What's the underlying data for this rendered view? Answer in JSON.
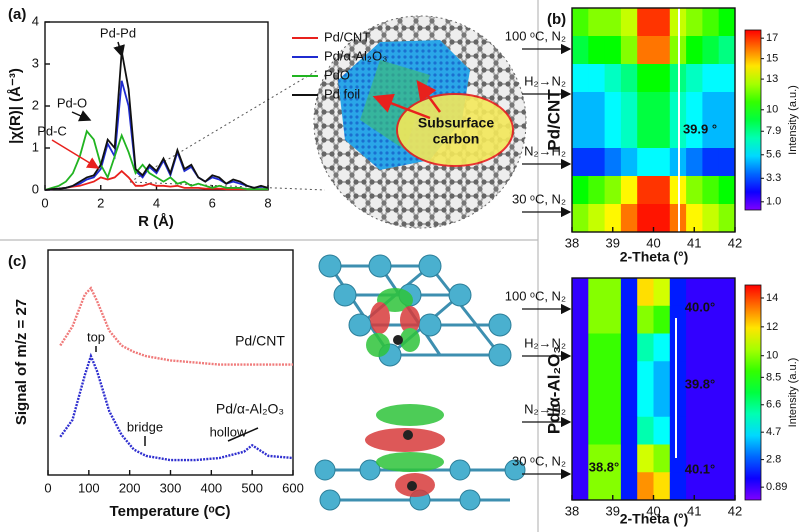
{
  "chart_data": [
    {
      "type": "line",
      "panel": "(a)",
      "x_label": "R (Å)",
      "y_label": "|χ(R)| (Å⁻³)",
      "x": [
        0,
        0.25,
        0.5,
        0.75,
        1,
        1.25,
        1.5,
        1.75,
        2,
        2.25,
        2.5,
        2.75,
        3,
        3.25,
        3.5,
        3.75,
        4,
        4.25,
        4.5,
        4.75,
        5,
        5.25,
        5.5,
        5.75,
        6,
        6.25,
        6.5,
        6.75,
        7,
        7.25,
        7.5,
        7.75,
        8
      ],
      "xlim": [
        0,
        8
      ],
      "xticks": [
        0,
        2,
        4,
        6,
        8
      ],
      "ylim": [
        0,
        4
      ],
      "yticks": [
        0,
        1,
        2,
        3,
        4
      ],
      "legend": "upper right",
      "series": [
        {
          "name": "Pd/CNT",
          "color": "#e8211d",
          "values": [
            0,
            0.02,
            0.03,
            0.05,
            0.08,
            0.1,
            0.15,
            0.2,
            0.3,
            0.25,
            0.3,
            0.45,
            0.3,
            0.1,
            0.1,
            0.15,
            0.1,
            0.1,
            0.08,
            0.1,
            0.05,
            0.05,
            0.05,
            0.03,
            0.03,
            0.03,
            0.02,
            0.02,
            0.02,
            0.02,
            0.02,
            0.02,
            0.02
          ]
        },
        {
          "name": "Pd/α-Al₂O₃",
          "color": "#1f2bd0",
          "values": [
            0,
            0.02,
            0.03,
            0.05,
            0.1,
            0.15,
            0.25,
            0.3,
            0.5,
            1.1,
            0.8,
            2.6,
            2.0,
            0.45,
            0.3,
            0.55,
            0.4,
            0.7,
            0.35,
            0.9,
            0.45,
            0.55,
            0.3,
            0.2,
            0.3,
            0.25,
            0.15,
            0.2,
            0.15,
            0.1,
            0.05,
            0.08,
            0.05
          ]
        },
        {
          "name": "PdO",
          "color": "#21b421",
          "values": [
            0,
            0.05,
            0.1,
            0.2,
            0.4,
            0.8,
            1.4,
            1.2,
            0.6,
            0.3,
            0.8,
            1.3,
            0.9,
            0.4,
            0.6,
            0.4,
            0.3,
            0.2,
            0.3,
            0.15,
            0.2,
            0.1,
            0.15,
            0.1,
            0.05,
            0.1,
            0.05,
            0.05,
            0.05,
            0.02,
            0.02,
            0.02,
            0.02
          ]
        },
        {
          "name": "Pd foil",
          "color": "#111111",
          "values": [
            0,
            0.02,
            0.03,
            0.05,
            0.1,
            0.2,
            0.3,
            0.35,
            0.6,
            1.2,
            1.0,
            3.3,
            2.4,
            0.5,
            0.35,
            0.6,
            0.45,
            0.75,
            0.4,
            0.95,
            0.5,
            0.6,
            0.3,
            0.2,
            0.35,
            0.3,
            0.15,
            0.25,
            0.2,
            0.1,
            0.05,
            0.1,
            0.05
          ]
        }
      ],
      "annotations": [
        "Pd-Pd",
        "Pd-O",
        "Pd-C"
      ],
      "inset_labels": [
        "Subsurface",
        "carbon"
      ]
    },
    {
      "type": "line",
      "panel": "(c)",
      "x_label": "Temperature (ᵒC)",
      "y_label": "Signal of m/z = 27",
      "x": [
        30,
        60,
        90,
        105,
        120,
        150,
        180,
        210,
        240,
        270,
        300,
        360,
        420,
        480,
        500,
        540,
        600
      ],
      "xlim": [
        0,
        600
      ],
      "xticks": [
        0,
        100,
        200,
        300,
        400,
        500,
        600
      ],
      "ylim": [
        -0.02,
        1.04
      ],
      "legend": "inline",
      "series": [
        {
          "name": "Pd/CNT",
          "color": "#f07a7a",
          "values": [
            0.59,
            0.68,
            0.83,
            0.86,
            0.8,
            0.66,
            0.59,
            0.56,
            0.54,
            0.53,
            0.52,
            0.51,
            0.5,
            0.5,
            0.5,
            0.5,
            0.5
          ]
        },
        {
          "name": "Pd/α-Al₂O₃",
          "color": "#2f2fcf",
          "values": [
            0.16,
            0.24,
            0.45,
            0.54,
            0.47,
            0.28,
            0.17,
            0.1,
            0.07,
            0.06,
            0.05,
            0.05,
            0.06,
            0.09,
            0.12,
            0.07,
            0.06
          ]
        }
      ],
      "annotations": [
        "top",
        "bridge",
        "hollow"
      ]
    },
    {
      "type": "heatmap",
      "panel": "(b)",
      "side_label": "Pd/CNT",
      "side_color": "#e8211d",
      "x_label": "2-Theta (°)",
      "x": [
        38.2,
        38.6,
        39.0,
        39.4,
        39.8,
        40.2,
        40.6,
        41.0,
        41.4,
        41.8
      ],
      "xlim": [
        38,
        42
      ],
      "xticks": [
        38,
        39,
        40,
        41,
        42
      ],
      "values": [
        [
          11,
          12,
          12,
          13,
          17,
          17,
          13,
          12,
          11,
          10
        ],
        [
          9,
          10,
          10,
          12,
          16,
          16,
          12,
          10,
          9,
          8
        ],
        [
          6,
          6,
          7,
          8,
          10,
          10,
          8,
          7,
          6,
          6
        ],
        [
          5,
          5,
          6,
          7,
          9,
          9,
          7,
          6,
          5,
          5
        ],
        [
          5,
          5,
          6,
          7,
          9,
          9,
          7,
          6,
          5,
          5
        ],
        [
          3,
          3,
          4,
          5,
          6,
          6,
          5,
          4,
          3,
          3
        ],
        [
          10,
          11,
          12,
          14,
          17,
          17,
          14,
          12,
          11,
          10
        ],
        [
          12,
          13,
          14,
          16,
          17.5,
          17.5,
          16,
          14,
          13,
          12
        ]
      ],
      "zlim": [
        0.2,
        17.8
      ],
      "colorbar_ticks": [
        {
          "value": 1.0,
          "label": "1.0"
        },
        3.3,
        5.6,
        7.9,
        10,
        13,
        15,
        17
      ],
      "colorbar_label": "Intensity (a.u.)",
      "conditions": [
        "100 ᵒC, N₂",
        "H₂→N₂",
        "N₂→H₂",
        "30 ᵒC, N₂"
      ],
      "annotations": [
        "39.9 °"
      ]
    },
    {
      "type": "heatmap",
      "side_label": "Pd/α-Al₂O₃",
      "side_color": "#1f2bd0",
      "x_label": "2-Theta (°)",
      "x": [
        38.2,
        38.6,
        39.0,
        39.4,
        39.8,
        40.2,
        40.6,
        41.0,
        41.4,
        41.8
      ],
      "xlim": [
        38,
        42
      ],
      "xticks": [
        38,
        39,
        40,
        41,
        42
      ],
      "values": [
        [
          1,
          10,
          10,
          2,
          12,
          11,
          2,
          1,
          1,
          1
        ],
        [
          1,
          10,
          10,
          2,
          10,
          9,
          2,
          1,
          1,
          1
        ],
        [
          1,
          9,
          9,
          2,
          6,
          5,
          2,
          1,
          1,
          1
        ],
        [
          1,
          9,
          9,
          2,
          5,
          4,
          2,
          1,
          1,
          1
        ],
        [
          1,
          9,
          9,
          2,
          5,
          4,
          2,
          1,
          1,
          1
        ],
        [
          1,
          9,
          9,
          2,
          6,
          5,
          2,
          1,
          1,
          1
        ],
        [
          1,
          10,
          10,
          2,
          11,
          10,
          2,
          1,
          1,
          1
        ],
        [
          1,
          10,
          10,
          2,
          13,
          12,
          2,
          1,
          1,
          1
        ]
      ],
      "zlim": [
        0,
        14.9
      ],
      "colorbar_ticks": [
        0.89,
        2.8,
        4.7,
        6.6,
        8.5,
        10,
        12,
        14
      ],
      "colorbar_label": "Intensity (a.u.)",
      "conditions": [
        "100 ᵒC, N₂",
        "H₂→N₂",
        "N₂→H₂",
        "30 ᵒC, N₂"
      ],
      "annotations": [
        "40.0°",
        "39.8°",
        "38.8°",
        "40.1°"
      ]
    }
  ]
}
